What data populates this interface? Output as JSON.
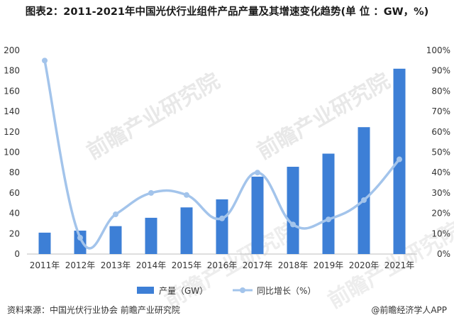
{
  "title": "图表2：2011-2021年中国光伏行业组件产品产量及其增速变化趋势(单 位 ：GW，%)",
  "source": "资料来源：中国光伏行业协会 前瞻产业研究院",
  "brand": "@前瞻经济学人APP",
  "watermark": "前瞻产业研究院",
  "colors": {
    "bar": "#3d7fd6",
    "line": "#a3c4eb",
    "axis": "#bfbfbf",
    "text": "#333333"
  },
  "chart_data": {
    "type": "bar",
    "categories": [
      "2011年",
      "2012年",
      "2013年",
      "2014年",
      "2015年",
      "2016年",
      "2017年",
      "2018年",
      "2019年",
      "2020年",
      "2021年"
    ],
    "series": [
      {
        "name": "产量（GW）",
        "type": "bar",
        "axis": "left",
        "values": [
          21,
          23,
          27.4,
          35.6,
          45.8,
          53.7,
          76,
          85.7,
          98.6,
          124.6,
          182
        ]
      },
      {
        "name": "同比增长（%）",
        "type": "line",
        "axis": "right",
        "smooth": true,
        "values": [
          95,
          8,
          19.5,
          30,
          29,
          17.5,
          40,
          14.5,
          17,
          26.5,
          46.5
        ]
      }
    ],
    "y_left": {
      "min": 0,
      "max": 200,
      "ticks": [
        "0",
        "20",
        "40",
        "60",
        "80",
        "100",
        "120",
        "140",
        "160",
        "180",
        "200"
      ]
    },
    "y_right": {
      "min": 0,
      "max": 100,
      "ticks": [
        "0%",
        "10%",
        "20%",
        "30%",
        "40%",
        "50%",
        "60%",
        "70%",
        "80%",
        "90%",
        "100%"
      ]
    },
    "legend": {
      "position": "bottom",
      "labels": [
        "产量（GW）",
        "同比增长（%）"
      ]
    },
    "grid": false
  }
}
